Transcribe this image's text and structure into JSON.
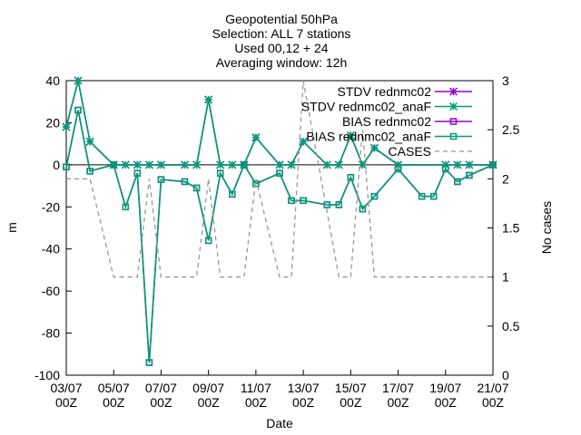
{
  "chart_data": {
    "type": "line",
    "title_lines": [
      "Geopotential 50hPa",
      "Selection: ALL      7 stations",
      "Used 00,12 + 24",
      "Averaging window: 12h"
    ],
    "xlabel": "Date",
    "ylabel": "m",
    "y2label": "No cases",
    "ylim": [
      -100,
      40
    ],
    "y2lim": [
      0,
      3
    ],
    "yticks": [
      -100,
      -80,
      -60,
      -40,
      -20,
      0,
      20,
      40
    ],
    "y2ticks": [
      "0",
      "0.5",
      "1",
      "1.5",
      "2",
      "2.5",
      "3"
    ],
    "xlim": [
      0,
      36
    ],
    "xticks": [
      {
        "pos": 0,
        "date": "03/07",
        "hour": "00Z"
      },
      {
        "pos": 4,
        "date": "05/07",
        "hour": "00Z"
      },
      {
        "pos": 8,
        "date": "07/07",
        "hour": "00Z"
      },
      {
        "pos": 12,
        "date": "09/07",
        "hour": "00Z"
      },
      {
        "pos": 16,
        "date": "11/07",
        "hour": "00Z"
      },
      {
        "pos": 20,
        "date": "13/07",
        "hour": "00Z"
      },
      {
        "pos": 24,
        "date": "15/07",
        "hour": "00Z"
      },
      {
        "pos": 28,
        "date": "17/07",
        "hour": "00Z"
      },
      {
        "pos": 32,
        "date": "19/07",
        "hour": "00Z"
      },
      {
        "pos": 36,
        "date": "21/07",
        "hour": "00Z"
      }
    ],
    "legend_position": "top-right",
    "series": [
      {
        "name": "STDV rednmc02",
        "color": "#9400d3",
        "marker": "star",
        "axis": "y1",
        "points": [
          [
            0,
            18
          ],
          [
            1,
            40
          ],
          [
            2,
            11
          ],
          [
            4,
            0
          ],
          [
            5,
            0
          ],
          [
            6,
            0
          ],
          [
            7,
            0
          ],
          [
            8,
            0
          ],
          [
            10,
            0
          ],
          [
            11,
            0
          ],
          [
            12,
            31
          ],
          [
            13,
            0
          ],
          [
            14,
            0
          ],
          [
            15,
            0
          ],
          [
            16,
            13
          ],
          [
            18,
            0
          ],
          [
            19,
            0
          ],
          [
            20,
            11
          ],
          [
            22,
            0
          ],
          [
            23,
            0
          ],
          [
            24,
            14
          ],
          [
            25,
            0
          ],
          [
            26,
            8
          ],
          [
            28,
            0
          ],
          [
            32,
            0
          ],
          [
            33,
            0
          ],
          [
            34,
            0
          ],
          [
            36,
            0
          ]
        ]
      },
      {
        "name": "STDV rednmc02_anaF",
        "color": "#009e73",
        "marker": "star",
        "axis": "y1",
        "points": [
          [
            0,
            18
          ],
          [
            1,
            40
          ],
          [
            2,
            11
          ],
          [
            4,
            0
          ],
          [
            5,
            0
          ],
          [
            6,
            0
          ],
          [
            7,
            0
          ],
          [
            8,
            0
          ],
          [
            10,
            0
          ],
          [
            11,
            0
          ],
          [
            12,
            31
          ],
          [
            13,
            0
          ],
          [
            14,
            0
          ],
          [
            15,
            0
          ],
          [
            16,
            13
          ],
          [
            18,
            0
          ],
          [
            19,
            0
          ],
          [
            20,
            11
          ],
          [
            22,
            0
          ],
          [
            23,
            0
          ],
          [
            24,
            14
          ],
          [
            25,
            0
          ],
          [
            26,
            8
          ],
          [
            28,
            0
          ],
          [
            32,
            0
          ],
          [
            33,
            0
          ],
          [
            34,
            0
          ],
          [
            36,
            0
          ]
        ]
      },
      {
        "name": "BIAS rednmc02",
        "color": "#9400d3",
        "marker": "square",
        "axis": "y1",
        "points": [
          [
            0,
            -1
          ],
          [
            1,
            26
          ],
          [
            2,
            -3
          ],
          [
            4,
            0
          ],
          [
            5,
            -20
          ],
          [
            6,
            -4
          ],
          [
            7,
            -94
          ],
          [
            8,
            -7
          ],
          [
            10,
            -8
          ],
          [
            11,
            -11
          ],
          [
            12,
            -36
          ],
          [
            13,
            -4
          ],
          [
            14,
            -14
          ],
          [
            15,
            0
          ],
          [
            16,
            -9
          ],
          [
            18,
            -4
          ],
          [
            19,
            -17
          ],
          [
            20,
            -17
          ],
          [
            22,
            -19
          ],
          [
            23,
            -19
          ],
          [
            24,
            -6
          ],
          [
            25,
            -21
          ],
          [
            26,
            -15
          ],
          [
            28,
            -2
          ],
          [
            30,
            -15
          ],
          [
            31,
            -15
          ],
          [
            32,
            -2
          ],
          [
            33,
            -8
          ],
          [
            34,
            -5
          ],
          [
            36,
            0
          ]
        ]
      },
      {
        "name": "BIAS rednmc02_anaF",
        "color": "#009e73",
        "marker": "square",
        "axis": "y1",
        "points": [
          [
            0,
            -1
          ],
          [
            1,
            26
          ],
          [
            2,
            -3
          ],
          [
            4,
            0
          ],
          [
            5,
            -20
          ],
          [
            6,
            -4
          ],
          [
            7,
            -94
          ],
          [
            8,
            -7
          ],
          [
            10,
            -8
          ],
          [
            11,
            -11
          ],
          [
            12,
            -36
          ],
          [
            13,
            -4
          ],
          [
            14,
            -14
          ],
          [
            15,
            0
          ],
          [
            16,
            -9
          ],
          [
            18,
            -4
          ],
          [
            19,
            -17
          ],
          [
            20,
            -17
          ],
          [
            22,
            -19
          ],
          [
            23,
            -19
          ],
          [
            24,
            -6
          ],
          [
            25,
            -21
          ],
          [
            26,
            -15
          ],
          [
            28,
            -2
          ],
          [
            30,
            -15
          ],
          [
            31,
            -15
          ],
          [
            32,
            -2
          ],
          [
            33,
            -8
          ],
          [
            34,
            -5
          ],
          [
            36,
            0
          ]
        ]
      },
      {
        "name": "CASES",
        "color": "#999999",
        "marker": "none",
        "dashed": true,
        "axis": "y2",
        "points": [
          [
            0,
            2
          ],
          [
            2,
            2
          ],
          [
            3,
            1.5
          ],
          [
            4,
            1
          ],
          [
            6,
            1
          ],
          [
            7,
            2
          ],
          [
            8,
            1
          ],
          [
            11,
            1
          ],
          [
            12,
            2
          ],
          [
            13,
            1
          ],
          [
            15,
            1
          ],
          [
            16,
            2
          ],
          [
            17,
            1.5
          ],
          [
            18,
            1
          ],
          [
            19,
            1
          ],
          [
            20,
            3
          ],
          [
            23,
            1
          ],
          [
            24,
            1
          ],
          [
            25,
            2.5
          ],
          [
            26,
            1
          ],
          [
            27,
            1
          ],
          [
            28,
            1
          ],
          [
            29,
            1
          ],
          [
            36,
            1
          ]
        ]
      }
    ]
  }
}
